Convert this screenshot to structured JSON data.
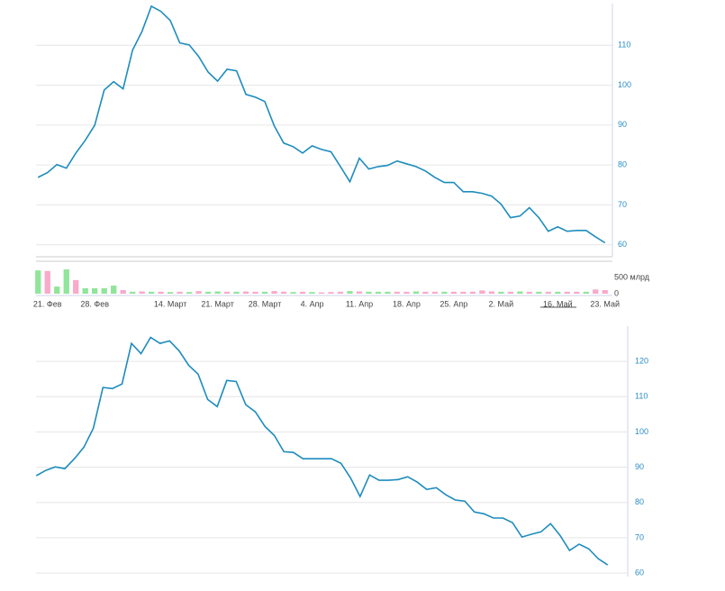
{
  "chart_data": [
    {
      "type": "line",
      "color": "#1d8cbd",
      "grid": true,
      "ylim": [
        57,
        120
      ],
      "yticks": [
        60,
        70,
        80,
        90,
        100,
        110
      ],
      "values": [
        76.9,
        78.1,
        80.1,
        79.2,
        83.0,
        86.2,
        90.0,
        98.8,
        100.9,
        99.1,
        108.8,
        113.5,
        119.8,
        118.5,
        116.2,
        110.6,
        110.1,
        107.2,
        103.3,
        101.0,
        104.0,
        103.6,
        97.7,
        97.0,
        95.9,
        89.8,
        85.5,
        84.6,
        83.0,
        84.8,
        83.9,
        83.3,
        79.6,
        75.8,
        81.7,
        79.0,
        79.6,
        79.9,
        81.0,
        80.3,
        79.6,
        78.5,
        76.9,
        75.6,
        75.6,
        73.3,
        73.3,
        72.9,
        72.2,
        70.2,
        66.8,
        67.2,
        69.3,
        66.8,
        63.4,
        64.5,
        63.4,
        63.6,
        63.6,
        62.0,
        60.5
      ]
    },
    {
      "type": "bar",
      "ylim": [
        0,
        1000
      ],
      "yticks": [
        0,
        {
          "value": 500,
          "label": "500 млрд"
        }
      ],
      "categories": [
        null,
        "21. Фев",
        null,
        null,
        null,
        null,
        "28. Фев",
        null,
        null,
        null,
        null,
        null,
        null,
        null,
        "14. Март",
        null,
        null,
        null,
        null,
        "21. Март",
        null,
        null,
        null,
        null,
        "28. Март",
        null,
        null,
        null,
        null,
        "4. Апр",
        null,
        null,
        null,
        null,
        "11. Апр",
        null,
        null,
        null,
        null,
        "18. Апр",
        null,
        null,
        null,
        null,
        "25. Апр",
        null,
        null,
        null,
        null,
        "2. Май",
        null,
        null,
        null,
        null,
        null,
        "16. Май",
        null,
        null,
        null,
        null,
        "23. Май"
      ],
      "values": [
        720,
        700,
        220,
        750,
        420,
        170,
        170,
        170,
        250,
        110,
        60,
        70,
        60,
        60,
        50,
        60,
        50,
        80,
        60,
        70,
        60,
        60,
        70,
        60,
        60,
        80,
        60,
        50,
        60,
        50,
        40,
        50,
        60,
        80,
        70,
        60,
        60,
        60,
        60,
        60,
        70,
        60,
        60,
        60,
        60,
        60,
        60,
        100,
        70,
        60,
        60,
        70,
        60,
        60,
        60,
        60,
        60,
        60,
        60,
        130,
        110
      ],
      "colors": [
        "#90e59a",
        "#f9a9c9",
        "#90e59a",
        "#90e59a",
        "#f9a9c9",
        "#90e59a",
        "#90e59a",
        "#90e59a",
        "#90e59a",
        "#f9a9c9",
        "#90e59a",
        "#f9a9c9",
        "#90e59a",
        "#f9a9c9",
        "#90e59a",
        "#f9a9c9",
        "#90e59a",
        "#f9a9c9",
        "#90e59a",
        "#90e59a",
        "#f9a9c9",
        "#90e59a",
        "#f9a9c9",
        "#f9a9c9",
        "#90e59a",
        "#f9a9c9",
        "#f9a9c9",
        "#90e59a",
        "#f9a9c9",
        "#90e59a",
        "#f9a9c9",
        "#f9a9c9",
        "#f9a9c9",
        "#90e59a",
        "#f9a9c9",
        "#90e59a",
        "#90e59a",
        "#90e59a",
        "#f9a9c9",
        "#f9a9c9",
        "#90e59a",
        "#f9a9c9",
        "#f9a9c9",
        "#90e59a",
        "#f9a9c9",
        "#f9a9c9",
        "#f9a9c9",
        "#f9a9c9",
        "#f9a9c9",
        "#90e59a",
        "#f9a9c9",
        "#90e59a",
        "#f9a9c9",
        "#90e59a",
        "#f9a9c9",
        "#90e59a",
        "#f9a9c9",
        "#f9a9c9",
        "#90e59a",
        "#f9a9c9",
        "#f9a9c9"
      ]
    },
    {
      "type": "line",
      "color": "#1d8cbd",
      "grid": true,
      "ylim": [
        59,
        130
      ],
      "yticks": [
        60,
        70,
        80,
        90,
        100,
        110,
        120
      ],
      "values": [
        87.6,
        89.1,
        90.1,
        89.6,
        92.4,
        95.7,
        101.1,
        112.6,
        112.3,
        113.6,
        125.1,
        122.2,
        126.8,
        125.1,
        125.8,
        123.0,
        118.9,
        116.4,
        109.2,
        107.2,
        114.6,
        114.3,
        107.7,
        105.7,
        101.6,
        99.0,
        94.4,
        94.2,
        92.4,
        92.4,
        92.4,
        92.4,
        91.1,
        87.0,
        81.7,
        87.8,
        86.3,
        86.3,
        86.5,
        87.3,
        85.8,
        83.7,
        84.2,
        82.2,
        80.7,
        80.4,
        77.3,
        76.8,
        75.6,
        75.6,
        74.3,
        70.2,
        71.0,
        71.7,
        74.0,
        70.7,
        66.4,
        68.2,
        66.9,
        64.1,
        62.3
      ]
    }
  ]
}
